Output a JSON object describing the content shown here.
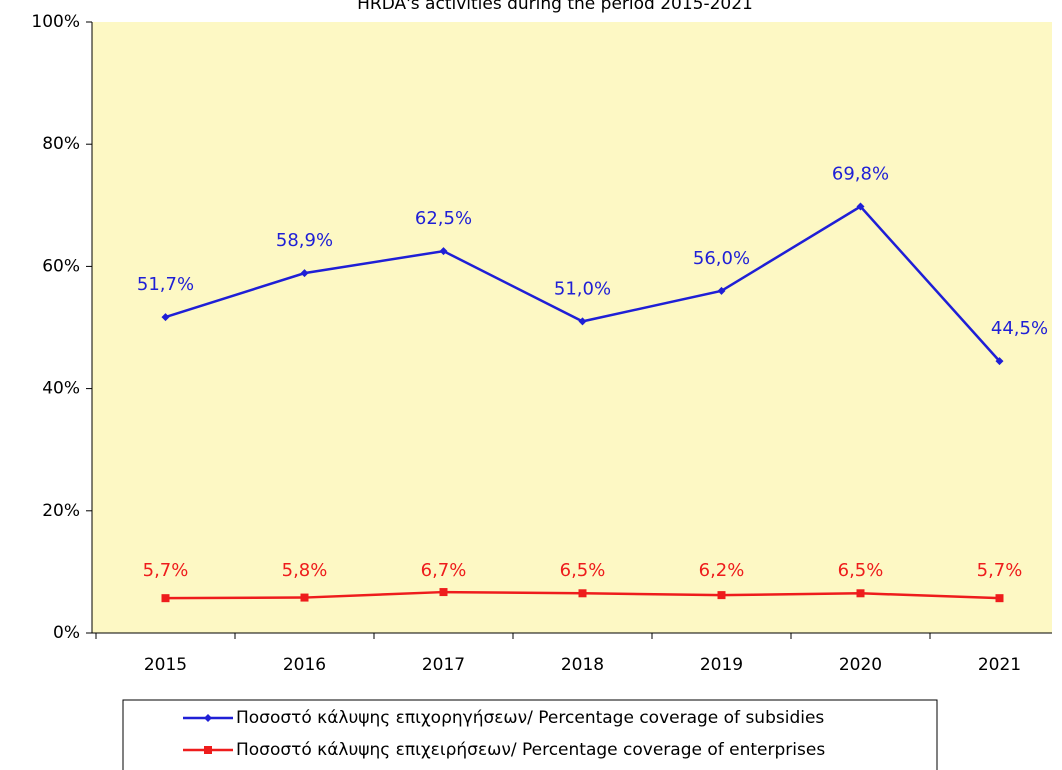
{
  "chart_data": {
    "type": "line",
    "title": "HRDA's activities during the period 2015-2021",
    "categories": [
      "2015",
      "2016",
      "2017",
      "2018",
      "2019",
      "2020",
      "2021"
    ],
    "series": [
      {
        "name": "Ποσοστό κάλυψης επιχορηγήσεων/ Percentage coverage of subsidies",
        "color": "#1f1fd6",
        "marker": "diamond",
        "values": [
          51.7,
          58.9,
          62.5,
          51.0,
          56.0,
          69.8,
          44.5
        ],
        "value_labels": [
          "51,7%",
          "58,9%",
          "62,5%",
          "51,0%",
          "56,0%",
          "69,8%",
          "44,5%"
        ]
      },
      {
        "name": "Ποσοστό κάλυψης επιχειρήσεων/ Percentage coverage of enterprises",
        "color": "#ee1c1c",
        "marker": "square",
        "values": [
          5.7,
          5.8,
          6.7,
          6.5,
          6.2,
          6.5,
          5.7
        ],
        "value_labels": [
          "5,7%",
          "5,8%",
          "6,7%",
          "6,5%",
          "6,2%",
          "6,5%",
          "5,7%"
        ]
      }
    ],
    "ylim": [
      0,
      100
    ],
    "yticks": [
      {
        "value": 0,
        "label": "0%"
      },
      {
        "value": 20,
        "label": "20%"
      },
      {
        "value": 40,
        "label": "40%"
      },
      {
        "value": 60,
        "label": "60%"
      },
      {
        "value": 80,
        "label": "80%"
      },
      {
        "value": 100,
        "label": "100%"
      }
    ],
    "plot_background": "#fdf8c4"
  }
}
